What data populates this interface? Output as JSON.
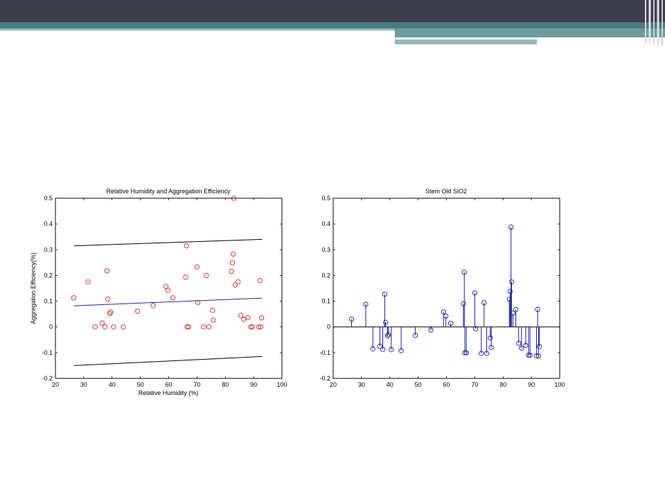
{
  "colors": {
    "header": "#3f3f50",
    "accent": "#4a7c7e",
    "scatter": "#cc2222",
    "fit": "#2222aa",
    "stem": "#1a1aaa"
  },
  "chart_data": [
    {
      "type": "scatter",
      "title": "Relative Humidity and Aggregation Efficiency",
      "xlabel": "Relative Humidity (%)",
      "ylabel": "Aggregation Efficiency(%)",
      "xlim": [
        20,
        100
      ],
      "ylim": [
        -0.2,
        0.5
      ],
      "xticks": [
        20,
        30,
        40,
        50,
        60,
        70,
        80,
        90,
        100
      ],
      "yticks": [
        -0.2,
        -0.1,
        0,
        0.1,
        0.2,
        0.3,
        0.4,
        0.5
      ],
      "ytick_labels": [
        "-0.2",
        "-0.1",
        "0",
        "0.1",
        "0.2",
        "0.3",
        "0.4",
        "0.5"
      ],
      "grid": false,
      "points": [
        [
          26.5,
          0.113
        ],
        [
          31.5,
          0.175
        ],
        [
          34,
          0.0
        ],
        [
          36.5,
          0.015
        ],
        [
          37.5,
          0.0
        ],
        [
          38.2,
          0.218
        ],
        [
          38.5,
          0.108
        ],
        [
          39.2,
          0.052
        ],
        [
          39.5,
          0.058
        ],
        [
          40.5,
          0.0
        ],
        [
          44,
          0.0
        ],
        [
          49,
          0.061
        ],
        [
          54.5,
          0.083
        ],
        [
          59,
          0.157
        ],
        [
          59.8,
          0.142
        ],
        [
          61.5,
          0.113
        ],
        [
          66,
          0.193
        ],
        [
          66.3,
          0.315
        ],
        [
          66.5,
          0.0
        ],
        [
          67,
          0.0
        ],
        [
          70,
          0.233
        ],
        [
          70.3,
          0.095
        ],
        [
          72.3,
          0.0
        ],
        [
          73.3,
          0.2
        ],
        [
          74.2,
          0.0
        ],
        [
          75.5,
          0.064
        ],
        [
          75.8,
          0.026
        ],
        [
          82.2,
          0.216
        ],
        [
          82.5,
          0.249
        ],
        [
          82.8,
          0.283
        ],
        [
          83,
          0.5
        ],
        [
          83.5,
          0.163
        ],
        [
          84.5,
          0.175
        ],
        [
          85.5,
          0.045
        ],
        [
          86.5,
          0.03
        ],
        [
          88,
          0.037
        ],
        [
          89,
          0.0
        ],
        [
          89.5,
          0.0
        ],
        [
          91.8,
          0.0
        ],
        [
          92.2,
          0.18
        ],
        [
          92.5,
          0.0
        ],
        [
          92.8,
          0.035
        ]
      ],
      "series": [
        {
          "values_x": [
            26.5,
            93
          ],
          "values_y": [
            0.315,
            0.34
          ]
        },
        {
          "values_x": [
            26.5,
            93
          ],
          "values_y": [
            0.082,
            0.112
          ]
        },
        {
          "values_x": [
            26.5,
            93
          ],
          "values_y": [
            -0.15,
            -0.115
          ]
        }
      ]
    },
    {
      "type": "stem",
      "title": "Stem Old SiO2",
      "xlabel": "",
      "ylabel": "",
      "xlim": [
        20,
        100
      ],
      "ylim": [
        -0.2,
        0.5
      ],
      "xticks": [
        20,
        30,
        40,
        50,
        60,
        70,
        80,
        90,
        100
      ],
      "yticks": [
        -0.2,
        -0.1,
        0,
        0.1,
        0.2,
        0.3,
        0.4,
        0.5
      ],
      "ytick_labels": [
        "-0.2",
        "-0.1",
        "0",
        "0.1",
        "0.2",
        "0.3",
        "0.4",
        "0.5"
      ],
      "grid": false,
      "points": [
        [
          26.5,
          0.03
        ],
        [
          31.5,
          0.088
        ],
        [
          34,
          -0.085
        ],
        [
          36.5,
          -0.075
        ],
        [
          37.5,
          -0.087
        ],
        [
          38.2,
          0.127
        ],
        [
          38.5,
          0.018
        ],
        [
          39.2,
          -0.035
        ],
        [
          39.5,
          -0.03
        ],
        [
          40.5,
          -0.088
        ],
        [
          44,
          -0.092
        ],
        [
          49,
          -0.033
        ],
        [
          54.5,
          -0.012
        ],
        [
          59,
          0.058
        ],
        [
          59.8,
          0.042
        ],
        [
          61.5,
          0.014
        ],
        [
          66,
          0.09
        ],
        [
          66.3,
          0.212
        ],
        [
          66.5,
          -0.1
        ],
        [
          67,
          -0.1
        ],
        [
          70,
          0.132
        ],
        [
          70.3,
          -0.007
        ],
        [
          72.3,
          -0.103
        ],
        [
          73.3,
          0.094
        ],
        [
          74.2,
          -0.103
        ],
        [
          75.5,
          -0.043
        ],
        [
          75.8,
          -0.08
        ],
        [
          82.2,
          0.107
        ],
        [
          82.5,
          0.138
        ],
        [
          82.8,
          0.388
        ],
        [
          83,
          0.175
        ],
        [
          83.5,
          0.053
        ],
        [
          84.5,
          0.067
        ],
        [
          85.5,
          -0.063
        ],
        [
          86.5,
          -0.082
        ],
        [
          88,
          -0.072
        ],
        [
          89,
          -0.11
        ],
        [
          89.5,
          -0.11
        ],
        [
          91.8,
          -0.113
        ],
        [
          92.2,
          0.068
        ],
        [
          92.5,
          -0.113
        ],
        [
          92.8,
          -0.076
        ]
      ]
    }
  ]
}
